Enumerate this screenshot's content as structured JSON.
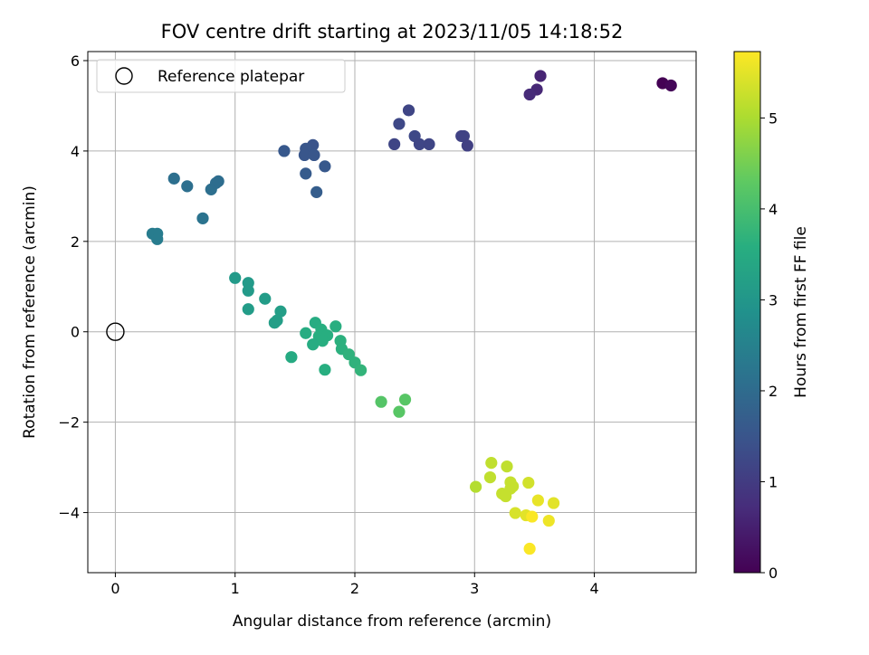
{
  "chart_data": {
    "type": "scatter",
    "title": "FOV centre drift starting at 2023/11/05 14:18:52",
    "xlabel": "Angular distance from reference (arcmin)",
    "ylabel": "Rotation from reference (arcmin)",
    "xlim": [
      -0.23,
      4.85
    ],
    "ylim": [
      -5.33,
      6.2
    ],
    "grid": true,
    "legend": {
      "placement": "top-left",
      "entries": [
        "Reference platepar"
      ]
    },
    "x_ticks": [
      {
        "v": 0,
        "label": "0"
      },
      {
        "v": 1,
        "label": "1"
      },
      {
        "v": 2,
        "label": "2"
      },
      {
        "v": 3,
        "label": "3"
      },
      {
        "v": 4,
        "label": "4"
      }
    ],
    "y_ticks": [
      {
        "v": -4,
        "label": "−4"
      },
      {
        "v": -2,
        "label": "−2"
      },
      {
        "v": 0,
        "label": "0"
      },
      {
        "v": 2,
        "label": "2"
      },
      {
        "v": 4,
        "label": "4"
      },
      {
        "v": 6,
        "label": "6"
      }
    ],
    "colorbar": {
      "label": "Hours from first FF file",
      "range": [
        0,
        5.73
      ],
      "colormap": "viridis",
      "ticks": [
        {
          "v": 0,
          "label": "0"
        },
        {
          "v": 1,
          "label": "1"
        },
        {
          "v": 2,
          "label": "2"
        },
        {
          "v": 3,
          "label": "3"
        },
        {
          "v": 4,
          "label": "4"
        },
        {
          "v": 5,
          "label": "5"
        }
      ]
    },
    "reference_point": {
      "name": "Reference platepar",
      "x": 0,
      "y": 0
    },
    "points": [
      {
        "x": 4.57,
        "y": 5.5,
        "c": 0.0
      },
      {
        "x": 4.64,
        "y": 5.45,
        "c": 0.08
      },
      {
        "x": 3.55,
        "y": 5.66,
        "c": 0.6
      },
      {
        "x": 3.52,
        "y": 5.36,
        "c": 0.65
      },
      {
        "x": 3.46,
        "y": 5.25,
        "c": 0.7
      },
      {
        "x": 2.45,
        "y": 4.9,
        "c": 1.2
      },
      {
        "x": 2.37,
        "y": 4.6,
        "c": 1.25
      },
      {
        "x": 2.5,
        "y": 4.33,
        "c": 1.25
      },
      {
        "x": 2.54,
        "y": 4.15,
        "c": 1.22
      },
      {
        "x": 2.33,
        "y": 4.15,
        "c": 1.2
      },
      {
        "x": 2.62,
        "y": 4.15,
        "c": 1.2
      },
      {
        "x": 2.89,
        "y": 4.33,
        "c": 1.15
      },
      {
        "x": 2.91,
        "y": 4.33,
        "c": 1.15
      },
      {
        "x": 2.94,
        "y": 4.12,
        "c": 1.1
      },
      {
        "x": 1.65,
        "y": 4.13,
        "c": 1.5
      },
      {
        "x": 1.59,
        "y": 4.05,
        "c": 1.55
      },
      {
        "x": 1.58,
        "y": 3.91,
        "c": 1.55
      },
      {
        "x": 1.66,
        "y": 3.91,
        "c": 1.55
      },
      {
        "x": 1.41,
        "y": 4.0,
        "c": 1.6
      },
      {
        "x": 1.75,
        "y": 3.66,
        "c": 1.6
      },
      {
        "x": 1.59,
        "y": 3.5,
        "c": 1.65
      },
      {
        "x": 1.68,
        "y": 3.09,
        "c": 1.7
      },
      {
        "x": 0.49,
        "y": 3.39,
        "c": 2.1
      },
      {
        "x": 0.6,
        "y": 3.22,
        "c": 2.1
      },
      {
        "x": 0.8,
        "y": 3.15,
        "c": 2.1
      },
      {
        "x": 0.84,
        "y": 3.29,
        "c": 2.05
      },
      {
        "x": 0.86,
        "y": 3.33,
        "c": 2.05
      },
      {
        "x": 0.73,
        "y": 2.51,
        "c": 2.2
      },
      {
        "x": 0.31,
        "y": 2.17,
        "c": 2.4
      },
      {
        "x": 0.35,
        "y": 2.17,
        "c": 2.4
      },
      {
        "x": 0.35,
        "y": 2.05,
        "c": 2.4
      },
      {
        "x": 1.0,
        "y": 1.19,
        "c": 3.1
      },
      {
        "x": 1.11,
        "y": 1.08,
        "c": 3.1
      },
      {
        "x": 1.11,
        "y": 0.91,
        "c": 3.1
      },
      {
        "x": 1.25,
        "y": 0.73,
        "c": 3.15
      },
      {
        "x": 1.38,
        "y": 0.45,
        "c": 3.2
      },
      {
        "x": 1.35,
        "y": 0.25,
        "c": 3.2
      },
      {
        "x": 1.33,
        "y": 0.2,
        "c": 3.2
      },
      {
        "x": 1.11,
        "y": 0.5,
        "c": 3.15
      },
      {
        "x": 1.67,
        "y": 0.2,
        "c": 3.55
      },
      {
        "x": 1.72,
        "y": 0.05,
        "c": 3.6
      },
      {
        "x": 1.84,
        "y": 0.12,
        "c": 3.6
      },
      {
        "x": 1.59,
        "y": -0.03,
        "c": 3.55
      },
      {
        "x": 1.7,
        "y": -0.1,
        "c": 3.6
      },
      {
        "x": 1.77,
        "y": -0.08,
        "c": 3.6
      },
      {
        "x": 1.88,
        "y": -0.2,
        "c": 3.65
      },
      {
        "x": 1.73,
        "y": -0.2,
        "c": 3.6
      },
      {
        "x": 1.65,
        "y": -0.28,
        "c": 3.55
      },
      {
        "x": 1.89,
        "y": -0.38,
        "c": 3.65
      },
      {
        "x": 1.95,
        "y": -0.5,
        "c": 3.7
      },
      {
        "x": 2.0,
        "y": -0.68,
        "c": 3.7
      },
      {
        "x": 2.05,
        "y": -0.85,
        "c": 3.75
      },
      {
        "x": 1.47,
        "y": -0.56,
        "c": 3.5
      },
      {
        "x": 1.75,
        "y": -0.84,
        "c": 3.6
      },
      {
        "x": 2.22,
        "y": -1.55,
        "c": 4.2
      },
      {
        "x": 2.42,
        "y": -1.5,
        "c": 4.25
      },
      {
        "x": 2.37,
        "y": -1.77,
        "c": 4.25
      },
      {
        "x": 3.14,
        "y": -2.9,
        "c": 5.2
      },
      {
        "x": 3.27,
        "y": -2.98,
        "c": 5.2
      },
      {
        "x": 3.13,
        "y": -3.22,
        "c": 5.2
      },
      {
        "x": 3.01,
        "y": -3.43,
        "c": 5.1
      },
      {
        "x": 3.3,
        "y": -3.33,
        "c": 5.25
      },
      {
        "x": 3.32,
        "y": -3.42,
        "c": 5.25
      },
      {
        "x": 3.3,
        "y": -3.47,
        "c": 5.25
      },
      {
        "x": 3.23,
        "y": -3.58,
        "c": 5.25
      },
      {
        "x": 3.26,
        "y": -3.64,
        "c": 5.25
      },
      {
        "x": 3.45,
        "y": -3.34,
        "c": 5.35
      },
      {
        "x": 3.53,
        "y": -3.73,
        "c": 5.55
      },
      {
        "x": 3.66,
        "y": -3.79,
        "c": 5.5
      },
      {
        "x": 3.34,
        "y": -4.01,
        "c": 5.4
      },
      {
        "x": 3.43,
        "y": -4.06,
        "c": 5.5
      },
      {
        "x": 3.48,
        "y": -4.09,
        "c": 5.7
      },
      {
        "x": 3.62,
        "y": -4.18,
        "c": 5.6
      },
      {
        "x": 3.46,
        "y": -4.8,
        "c": 5.7
      }
    ]
  }
}
